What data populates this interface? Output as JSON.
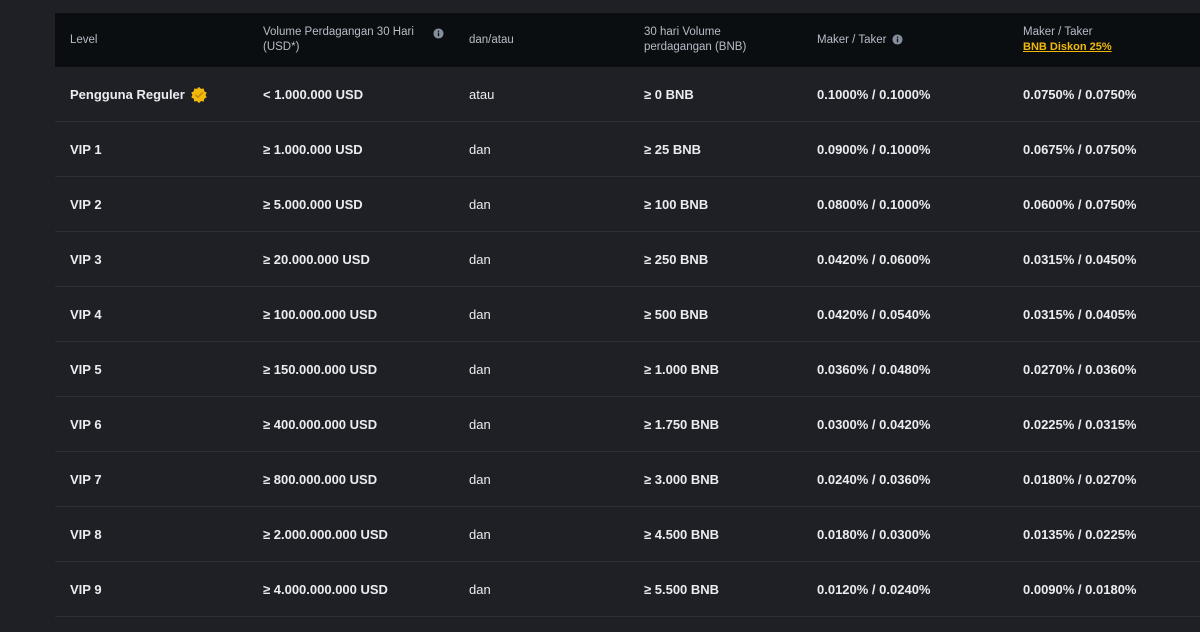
{
  "header": {
    "level": "Level",
    "volume_usd": "Volume Perdagangan 30 Hari",
    "volume_usd_unit": "(USD*)",
    "connector": "dan/atau",
    "volume_bnb_line1": "30 hari Volume",
    "volume_bnb_line2": "perdagangan (BNB)",
    "maker_taker": "Maker / Taker",
    "maker_taker_bnb": "Maker / Taker",
    "bnb_discount": "BNB Diskon 25%"
  },
  "colors": {
    "background": "#1e2026",
    "header_bg": "#0b0e11",
    "accent": "#f0b90b"
  },
  "rows": [
    {
      "level": "Pengguna Reguler",
      "usd": "< 1.000.000 USD",
      "conn": "atau",
      "bnb": "≥ 0 BNB",
      "fee": "0.1000% / 0.1000%",
      "fee_bnb": "0.0750% / 0.0750%"
    },
    {
      "level": "VIP 1",
      "usd": "≥ 1.000.000 USD",
      "conn": "dan",
      "bnb": "≥ 25 BNB",
      "fee": "0.0900% / 0.1000%",
      "fee_bnb": "0.0675% / 0.0750%"
    },
    {
      "level": "VIP 2",
      "usd": "≥ 5.000.000 USD",
      "conn": "dan",
      "bnb": "≥ 100 BNB",
      "fee": "0.0800% / 0.1000%",
      "fee_bnb": "0.0600% / 0.0750%"
    },
    {
      "level": "VIP 3",
      "usd": "≥ 20.000.000 USD",
      "conn": "dan",
      "bnb": "≥ 250 BNB",
      "fee": "0.0420% / 0.0600%",
      "fee_bnb": "0.0315% / 0.0450%"
    },
    {
      "level": "VIP 4",
      "usd": "≥ 100.000.000 USD",
      "conn": "dan",
      "bnb": "≥ 500 BNB",
      "fee": "0.0420% / 0.0540%",
      "fee_bnb": "0.0315% / 0.0405%"
    },
    {
      "level": "VIP 5",
      "usd": "≥ 150.000.000 USD",
      "conn": "dan",
      "bnb": "≥ 1.000 BNB",
      "fee": "0.0360% / 0.0480%",
      "fee_bnb": "0.0270% / 0.0360%"
    },
    {
      "level": "VIP 6",
      "usd": "≥ 400.000.000 USD",
      "conn": "dan",
      "bnb": "≥ 1.750 BNB",
      "fee": "0.0300% / 0.0420%",
      "fee_bnb": "0.0225% / 0.0315%"
    },
    {
      "level": "VIP 7",
      "usd": "≥ 800.000.000 USD",
      "conn": "dan",
      "bnb": "≥ 3.000 BNB",
      "fee": "0.0240% / 0.0360%",
      "fee_bnb": "0.0180% / 0.0270%"
    },
    {
      "level": "VIP 8",
      "usd": "≥ 2.000.000.000 USD",
      "conn": "dan",
      "bnb": "≥ 4.500 BNB",
      "fee": "0.0180% / 0.0300%",
      "fee_bnb": "0.0135% / 0.0225%"
    },
    {
      "level": "VIP 9",
      "usd": "≥ 4.000.000.000 USD",
      "conn": "dan",
      "bnb": "≥ 5.500 BNB",
      "fee": "0.0120% / 0.0240%",
      "fee_bnb": "0.0090% / 0.0180%"
    }
  ]
}
